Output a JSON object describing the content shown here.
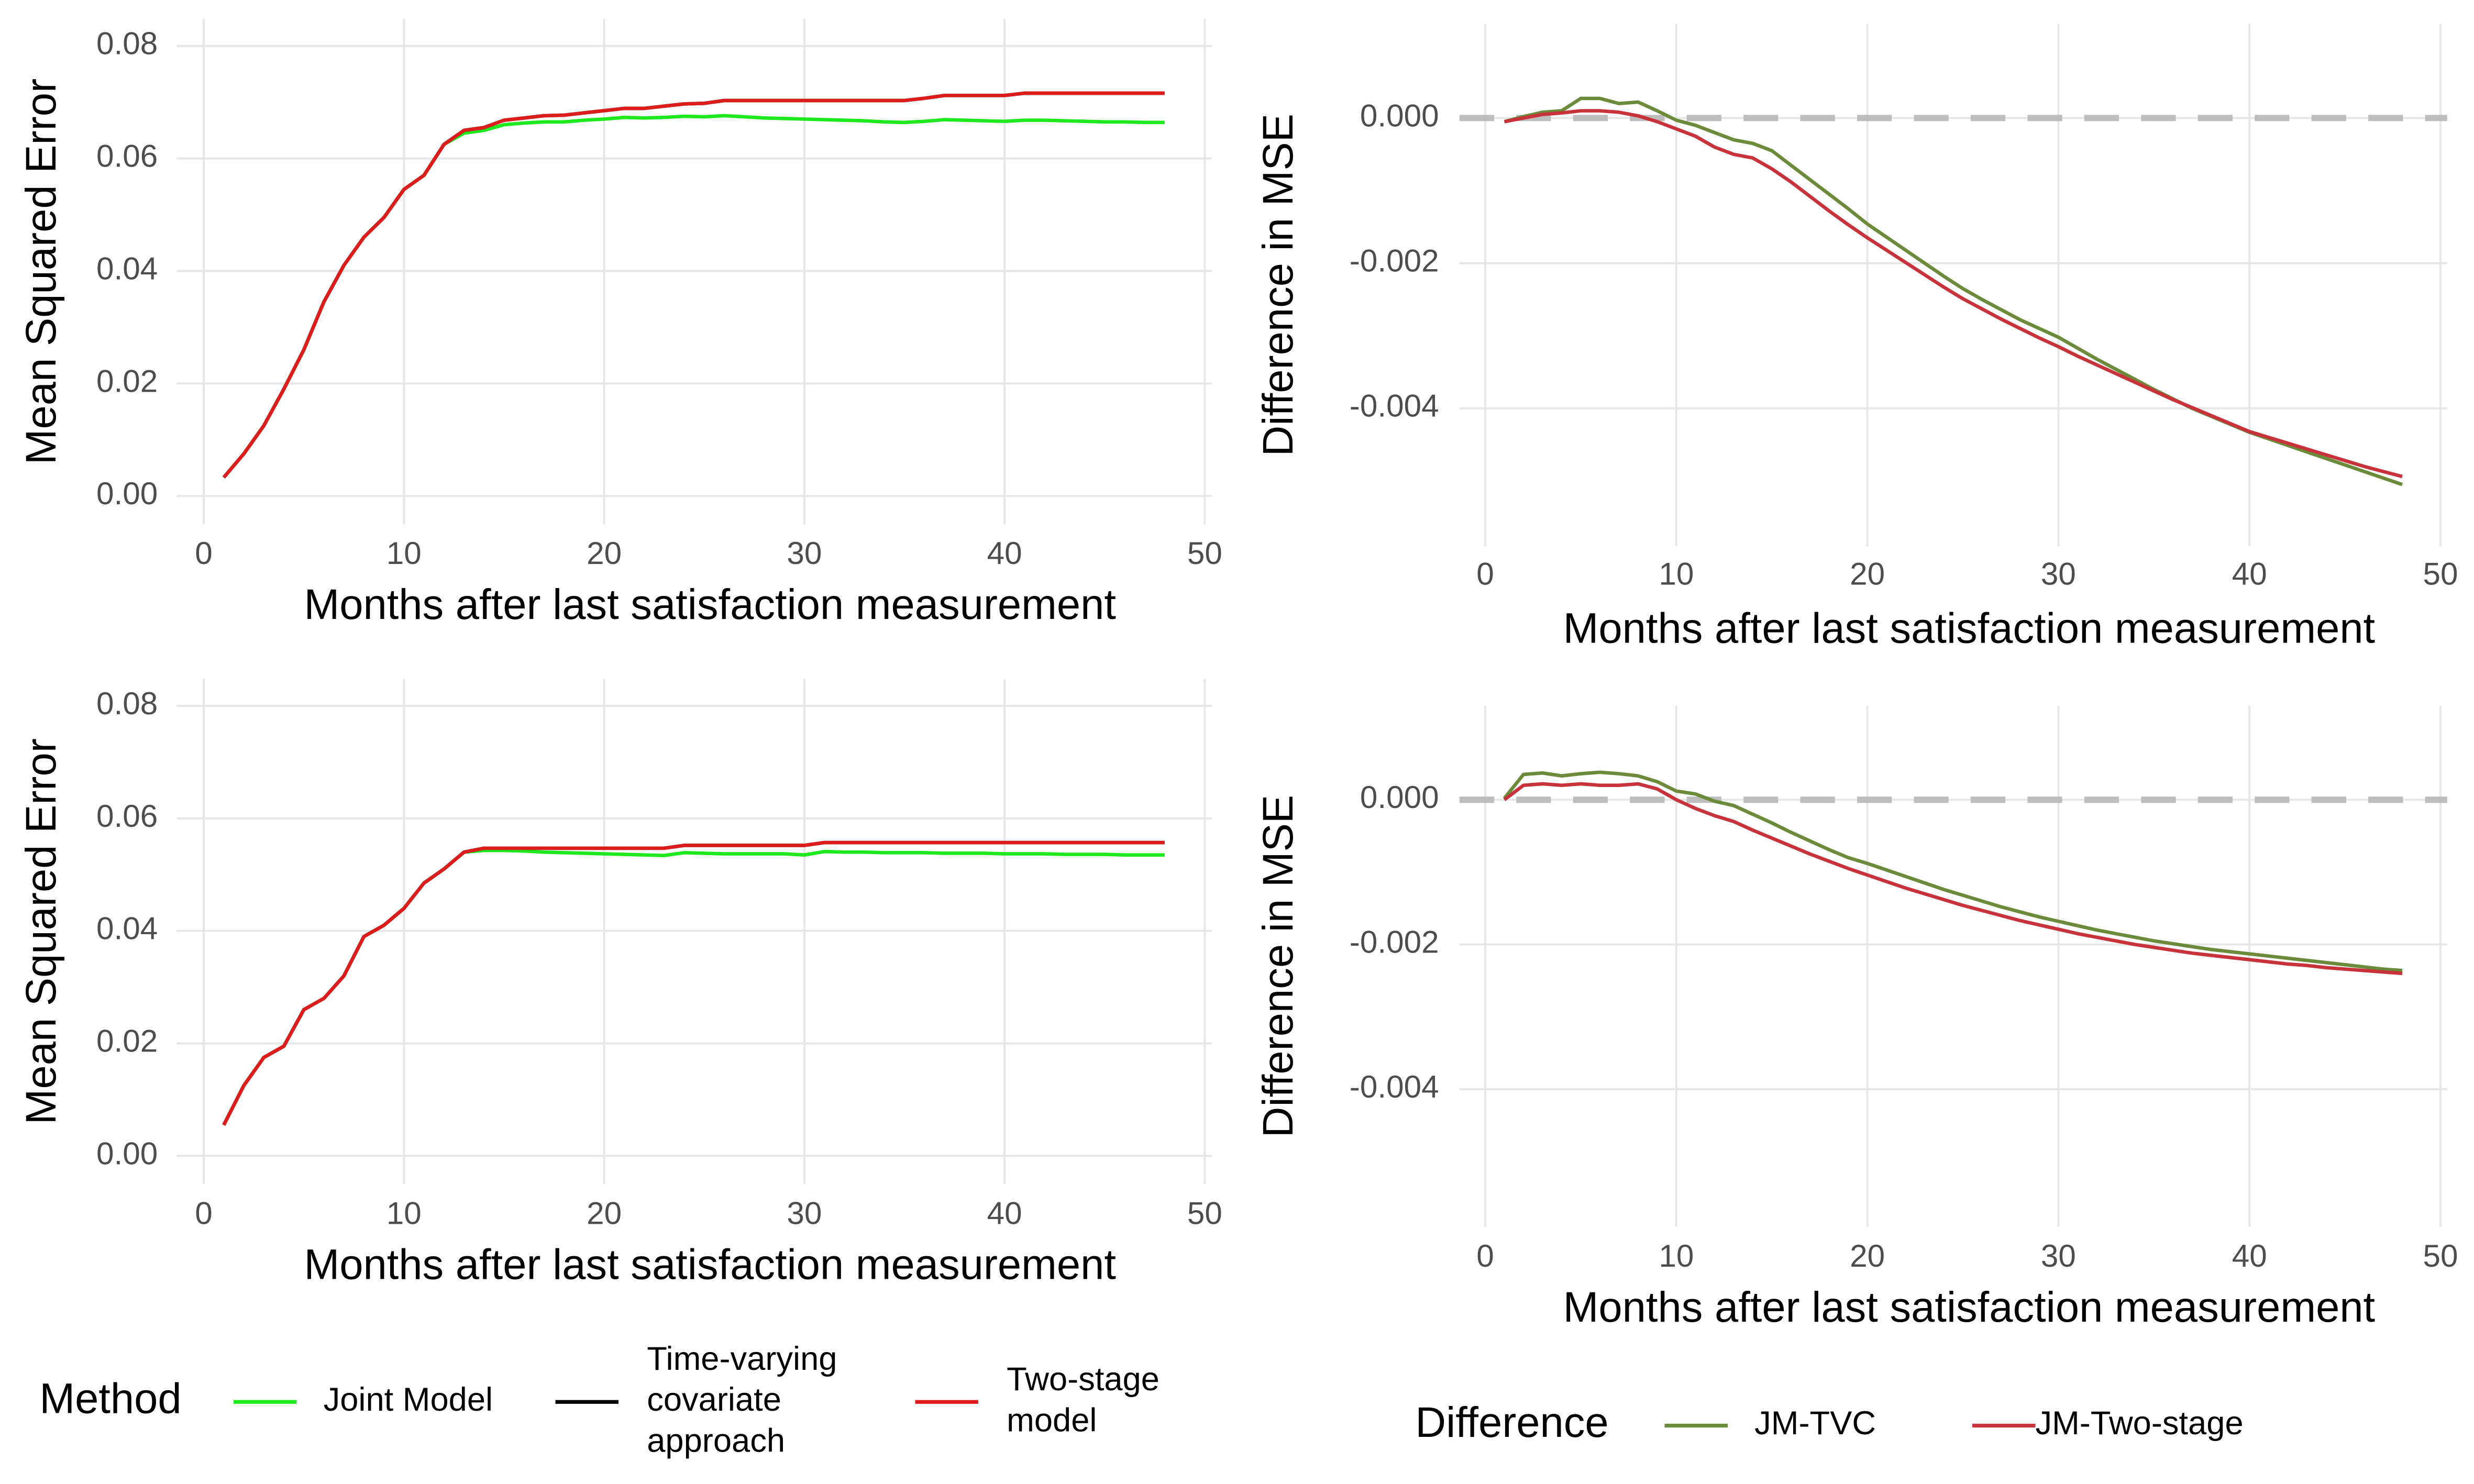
{
  "chart_data": [
    {
      "type": "line",
      "x_label": "Months after last satisfaction measurement",
      "y_label": "Mean Squared Error",
      "x": [
        1,
        2,
        3,
        4,
        5,
        6,
        7,
        8,
        9,
        10,
        11,
        12,
        13,
        14,
        15,
        16,
        17,
        18,
        19,
        20,
        21,
        22,
        23,
        24,
        25,
        26,
        27,
        28,
        29,
        30,
        31,
        32,
        33,
        34,
        35,
        36,
        37,
        38,
        39,
        40,
        41,
        42,
        43,
        44,
        45,
        46,
        47,
        48
      ],
      "series": [
        {
          "color": "#1ee81e",
          "values": [
            0.0033,
            0.0075,
            0.0125,
            0.019,
            0.026,
            0.0345,
            0.041,
            0.046,
            0.0495,
            0.0545,
            0.057,
            0.0625,
            0.0645,
            0.065,
            0.066,
            0.0663,
            0.0665,
            0.0665,
            0.0668,
            0.067,
            0.0673,
            0.0672,
            0.0673,
            0.0675,
            0.0674,
            0.0676,
            0.0674,
            0.0672,
            0.0671,
            0.067,
            0.0669,
            0.0668,
            0.0667,
            0.0665,
            0.0664,
            0.0666,
            0.0669,
            0.0668,
            0.0667,
            0.0666,
            0.0668,
            0.0668,
            0.0667,
            0.0666,
            0.0665,
            0.0665,
            0.0664,
            0.0664
          ]
        },
        {
          "color": "#000000",
          "values": [
            0.0033,
            0.0075,
            0.0125,
            0.019,
            0.026,
            0.0345,
            0.041,
            0.046,
            0.0495,
            0.0545,
            0.057,
            0.0625,
            0.065,
            0.0655,
            0.0668,
            0.0672,
            0.0676,
            0.0677,
            0.0681,
            0.0685,
            0.0689,
            0.0689,
            0.0693,
            0.0697,
            0.0698,
            0.0703,
            0.0703,
            0.0703,
            0.0703,
            0.0703,
            0.0703,
            0.0703,
            0.0703,
            0.0703,
            0.0703,
            0.0707,
            0.0712,
            0.0712,
            0.0712,
            0.0712,
            0.0716,
            0.0716,
            0.0716,
            0.0716,
            0.0716,
            0.0716,
            0.0716,
            0.0716
          ]
        },
        {
          "color": "#dd1c1c",
          "values": [
            0.0033,
            0.0075,
            0.0125,
            0.019,
            0.026,
            0.0345,
            0.041,
            0.046,
            0.0495,
            0.0545,
            0.057,
            0.0625,
            0.065,
            0.0655,
            0.0668,
            0.0672,
            0.0676,
            0.0677,
            0.0681,
            0.0685,
            0.0689,
            0.0689,
            0.0693,
            0.0697,
            0.0698,
            0.0703,
            0.0703,
            0.0703,
            0.0703,
            0.0703,
            0.0703,
            0.0703,
            0.0703,
            0.0703,
            0.0703,
            0.0707,
            0.0712,
            0.0712,
            0.0712,
            0.0712,
            0.0716,
            0.0716,
            0.0716,
            0.0716,
            0.0716,
            0.0716,
            0.0716,
            0.0716
          ]
        }
      ],
      "xlim": [
        -1.35,
        50.35
      ],
      "xticks": [
        0,
        10,
        20,
        30,
        40,
        50
      ],
      "ylim": [
        -0.005,
        0.0848
      ],
      "yticks": [
        {
          "value": 0,
          "label": "0.00"
        },
        0.02,
        0.04,
        0.06,
        0.08
      ],
      "grid": true
    },
    {
      "type": "line",
      "x_label": "Months after last satisfaction measurement",
      "y_label": "Difference in MSE",
      "x": [
        1,
        2,
        3,
        4,
        5,
        6,
        7,
        8,
        9,
        10,
        11,
        12,
        13,
        14,
        15,
        16,
        17,
        18,
        19,
        20,
        21,
        22,
        23,
        24,
        25,
        26,
        27,
        28,
        29,
        30,
        31,
        32,
        33,
        34,
        35,
        36,
        37,
        38,
        39,
        40,
        41,
        42,
        43,
        44,
        45,
        46,
        47,
        48
      ],
      "series": [
        {
          "color": "#6b8b3a",
          "values": [
            -5e-05,
            2e-05,
            8e-05,
            0.0001,
            0.00027,
            0.00027,
            0.0002,
            0.00022,
            0.0001,
            -3e-05,
            -0.0001,
            -0.0002,
            -0.0003,
            -0.00035,
            -0.00045,
            -0.00065,
            -0.00085,
            -0.00105,
            -0.00125,
            -0.00146,
            -0.00164,
            -0.00182,
            -0.002,
            -0.00218,
            -0.00235,
            -0.0025,
            -0.00264,
            -0.00278,
            -0.0029,
            -0.00302,
            -0.00317,
            -0.00332,
            -0.00346,
            -0.0036,
            -0.00374,
            -0.00387,
            -0.004,
            -0.00411,
            -0.00422,
            -0.00433,
            -0.00442,
            -0.00451,
            -0.0046,
            -0.00469,
            -0.00478,
            -0.00487,
            -0.00496,
            -0.00505
          ]
        },
        {
          "color": "#c8323a",
          "values": [
            -5e-05,
            0.0,
            5e-05,
            7e-05,
            0.0001,
            0.0001,
            8e-05,
            3e-05,
            -5e-05,
            -0.00015,
            -0.00025,
            -0.0004,
            -0.0005,
            -0.00055,
            -0.0007,
            -0.00088,
            -0.00108,
            -0.00128,
            -0.00147,
            -0.00165,
            -0.00182,
            -0.00199,
            -0.00216,
            -0.00233,
            -0.00249,
            -0.00263,
            -0.00277,
            -0.0029,
            -0.00303,
            -0.00315,
            -0.00328,
            -0.0034,
            -0.00352,
            -0.00364,
            -0.00376,
            -0.00388,
            -0.00399,
            -0.0041,
            -0.00421,
            -0.00432,
            -0.0044,
            -0.00448,
            -0.00456,
            -0.00464,
            -0.00472,
            -0.0048,
            -0.00487,
            -0.00494
          ]
        }
      ],
      "hline": 0,
      "xlim": [
        -1.35,
        50.35
      ],
      "xticks": [
        0,
        10,
        20,
        30,
        40,
        50
      ],
      "ylim": [
        -0.0059,
        0.0013
      ],
      "yticks": [
        -0.004,
        -0.002,
        {
          "value": 0,
          "label": "0.000"
        }
      ],
      "grid": true
    },
    {
      "type": "line",
      "x_label": "Months after last satisfaction measurement",
      "y_label": "Mean Squared Error",
      "legend_title": "Method",
      "x": [
        1,
        2,
        3,
        4,
        5,
        6,
        7,
        8,
        9,
        10,
        11,
        12,
        13,
        14,
        15,
        16,
        17,
        18,
        19,
        20,
        21,
        22,
        23,
        24,
        25,
        26,
        27,
        28,
        29,
        30,
        31,
        32,
        33,
        34,
        35,
        36,
        37,
        38,
        39,
        40,
        41,
        42,
        43,
        44,
        45,
        46,
        47,
        48
      ],
      "series": [
        {
          "name": "Joint Model",
          "color": "#1ee81e",
          "values": [
            0.0055,
            0.0125,
            0.0175,
            0.0195,
            0.026,
            0.028,
            0.032,
            0.039,
            0.041,
            0.044,
            0.0485,
            0.051,
            0.054,
            0.0543,
            0.0543,
            0.0542,
            0.054,
            0.0539,
            0.0538,
            0.0537,
            0.0536,
            0.0535,
            0.0534,
            0.0539,
            0.0538,
            0.0537,
            0.0537,
            0.0537,
            0.0537,
            0.0535,
            0.0541,
            0.054,
            0.054,
            0.0539,
            0.0539,
            0.0539,
            0.0538,
            0.0538,
            0.0538,
            0.0537,
            0.0537,
            0.0537,
            0.0536,
            0.0536,
            0.0536,
            0.0535,
            0.0535,
            0.0535
          ]
        },
        {
          "name": "Time-varying\ncovariate\napproach",
          "color": "#000000",
          "values": [
            0.0055,
            0.0125,
            0.0175,
            0.0195,
            0.026,
            0.028,
            0.032,
            0.039,
            0.041,
            0.044,
            0.0485,
            0.051,
            0.054,
            0.0547,
            0.0547,
            0.0547,
            0.0547,
            0.0547,
            0.0547,
            0.0547,
            0.0547,
            0.0547,
            0.0547,
            0.0552,
            0.0552,
            0.0552,
            0.0552,
            0.0552,
            0.0552,
            0.0552,
            0.0557,
            0.0557,
            0.0557,
            0.0557,
            0.0557,
            0.0557,
            0.0557,
            0.0557,
            0.0557,
            0.0557,
            0.0557,
            0.0557,
            0.0557,
            0.0557,
            0.0557,
            0.0557,
            0.0557,
            0.0557
          ]
        },
        {
          "name": "Two-stage\nmodel",
          "color": "#dd1c1c",
          "values": [
            0.0055,
            0.0125,
            0.0175,
            0.0195,
            0.026,
            0.028,
            0.032,
            0.039,
            0.041,
            0.044,
            0.0485,
            0.051,
            0.054,
            0.0547,
            0.0547,
            0.0547,
            0.0547,
            0.0547,
            0.0547,
            0.0547,
            0.0547,
            0.0547,
            0.0547,
            0.0552,
            0.0552,
            0.0552,
            0.0552,
            0.0552,
            0.0552,
            0.0552,
            0.0557,
            0.0557,
            0.0557,
            0.0557,
            0.0557,
            0.0557,
            0.0557,
            0.0557,
            0.0557,
            0.0557,
            0.0557,
            0.0557,
            0.0557,
            0.0557,
            0.0557,
            0.0557,
            0.0557,
            0.0557
          ]
        }
      ],
      "xlim": [
        -1.35,
        50.35
      ],
      "xticks": [
        0,
        10,
        20,
        30,
        40,
        50
      ],
      "ylim": [
        -0.005,
        0.0848
      ],
      "yticks": [
        {
          "value": 0,
          "label": "0.00"
        },
        0.02,
        0.04,
        0.06,
        0.08
      ],
      "grid": true
    },
    {
      "type": "line",
      "x_label": "Months after last satisfaction measurement",
      "y_label": "Difference in MSE",
      "legend_title": "Difference",
      "x": [
        1,
        2,
        3,
        4,
        5,
        6,
        7,
        8,
        9,
        10,
        11,
        12,
        13,
        14,
        15,
        16,
        17,
        18,
        19,
        20,
        21,
        22,
        23,
        24,
        25,
        26,
        27,
        28,
        29,
        30,
        31,
        32,
        33,
        34,
        35,
        36,
        37,
        38,
        39,
        40,
        41,
        42,
        43,
        44,
        45,
        46,
        47,
        48
      ],
      "series": [
        {
          "name": "JM-TVC",
          "color": "#6b8b3a",
          "values": [
            2e-05,
            0.00035,
            0.00037,
            0.00033,
            0.00036,
            0.00038,
            0.00036,
            0.00033,
            0.00025,
            0.00012,
            8e-05,
            -2e-05,
            -8e-05,
            -0.0002,
            -0.00032,
            -0.00045,
            -0.00057,
            -0.00069,
            -0.0008,
            -0.00088,
            -0.00097,
            -0.00106,
            -0.00115,
            -0.00124,
            -0.00132,
            -0.0014,
            -0.00148,
            -0.00155,
            -0.00162,
            -0.00168,
            -0.00174,
            -0.0018,
            -0.00185,
            -0.0019,
            -0.00195,
            -0.00199,
            -0.00203,
            -0.00207,
            -0.0021,
            -0.00213,
            -0.00216,
            -0.00219,
            -0.00222,
            -0.00225,
            -0.00228,
            -0.00231,
            -0.00234,
            -0.00236
          ]
        },
        {
          "name": "JM-Two-stage",
          "color": "#c8323a",
          "values": [
            0.0,
            0.0002,
            0.00022,
            0.0002,
            0.00022,
            0.0002,
            0.0002,
            0.00022,
            0.00015,
            0.0,
            -0.00012,
            -0.00022,
            -0.0003,
            -0.00042,
            -0.00053,
            -0.00064,
            -0.00075,
            -0.00085,
            -0.00095,
            -0.00104,
            -0.00113,
            -0.00122,
            -0.0013,
            -0.00138,
            -0.00146,
            -0.00153,
            -0.0016,
            -0.00167,
            -0.00173,
            -0.00179,
            -0.00185,
            -0.0019,
            -0.00195,
            -0.002,
            -0.00204,
            -0.00208,
            -0.00212,
            -0.00215,
            -0.00218,
            -0.00221,
            -0.00224,
            -0.00227,
            -0.00229,
            -0.00232,
            -0.00234,
            -0.00236,
            -0.00238,
            -0.0024
          ]
        }
      ],
      "hline": 0,
      "xlim": [
        -1.35,
        50.35
      ],
      "xticks": [
        0,
        10,
        20,
        30,
        40,
        50
      ],
      "ylim": [
        -0.0059,
        0.0013
      ],
      "yticks": [
        -0.004,
        -0.002,
        {
          "value": 0,
          "label": "0.000"
        }
      ],
      "grid": true
    }
  ]
}
